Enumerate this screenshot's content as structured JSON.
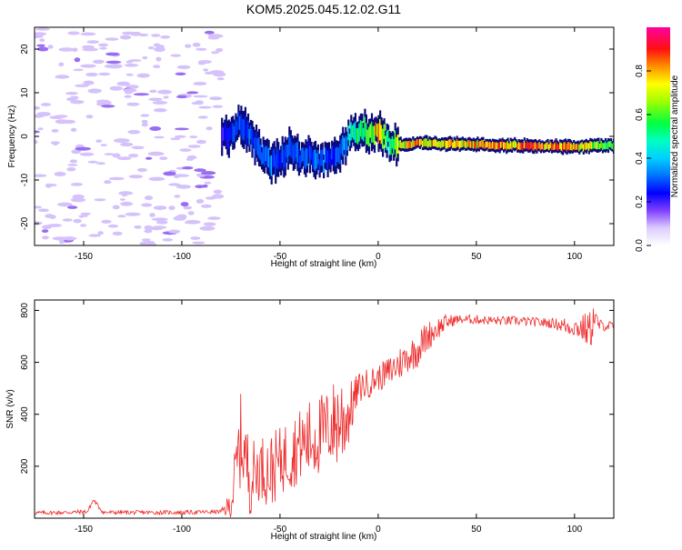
{
  "title": "KOM5.2025.045.12.02.G11",
  "chart_data": [
    {
      "type": "heatmap",
      "xlabel": "Height of straight line (km)",
      "ylabel": "Frequency (Hz)",
      "xlim": [
        -175,
        120
      ],
      "ylim": [
        -25,
        25
      ],
      "x_ticks": [
        -150,
        -100,
        -50,
        0,
        50,
        100
      ],
      "x_tick_labels": [
        "-150",
        "-100",
        "-50",
        "0",
        "50",
        "100"
      ],
      "y_ticks": [
        -20,
        -10,
        0,
        10,
        20
      ],
      "y_tick_labels": [
        "-20",
        "-10",
        "0",
        "10",
        "20"
      ],
      "grid": false,
      "colorbar": {
        "label": "Normalized spectral amplitude",
        "range": [
          0,
          1
        ],
        "ticks": [
          0.0,
          0.2,
          0.4,
          0.6,
          0.8
        ],
        "tick_labels": [
          "0.0",
          "0.2",
          "0.4",
          "0.6",
          "0.8"
        ]
      },
      "ridge": {
        "x": [
          -80,
          -75,
          -70,
          -65,
          -60,
          -55,
          -50,
          -45,
          -40,
          -35,
          -30,
          -25,
          -20,
          -15,
          -10,
          -5,
          0,
          5,
          10,
          20,
          40,
          60,
          80,
          100,
          120
        ],
        "frequency": [
          -1,
          1,
          3,
          0,
          -4,
          -6,
          -5,
          -3,
          -5,
          -4,
          -6,
          -5,
          -3,
          0,
          1,
          1,
          1,
          -1,
          -2,
          -1.5,
          -1.8,
          -2,
          -2.2,
          -2.4,
          -2
        ],
        "amplitude": [
          0.2,
          0.3,
          0.35,
          0.3,
          0.3,
          0.35,
          0.3,
          0.3,
          0.35,
          0.3,
          0.35,
          0.3,
          0.3,
          0.45,
          0.55,
          0.6,
          0.95,
          0.5,
          0.7,
          0.85,
          0.8,
          0.85,
          0.9,
          0.85,
          0.6
        ]
      },
      "noise_region": {
        "x_from": -175,
        "x_to": -80,
        "amplitude": 0.1
      }
    },
    {
      "type": "line",
      "xlabel": "Height of straight line (km)",
      "ylabel": "SNR (v/v)",
      "xlim": [
        -175,
        120
      ],
      "ylim": [
        0,
        840
      ],
      "x_ticks": [
        -150,
        -100,
        -50,
        0,
        50,
        100
      ],
      "x_tick_labels": [
        "-150",
        "-100",
        "-50",
        "0",
        "50",
        "100"
      ],
      "y_ticks": [
        200,
        400,
        600,
        800
      ],
      "y_tick_labels": [
        "200",
        "400",
        "600",
        "800"
      ],
      "grid": false,
      "series": [
        {
          "color": "#ee2b2b",
          "x": [
            -175,
            -160,
            -148,
            -145,
            -140,
            -120,
            -100,
            -80,
            -75,
            -72,
            -70,
            -68,
            -65,
            -60,
            -55,
            -50,
            -45,
            -40,
            -35,
            -30,
            -25,
            -20,
            -18,
            -15,
            -10,
            -5,
            0,
            5,
            10,
            15,
            20,
            25,
            30,
            35,
            40,
            50,
            60,
            70,
            80,
            90,
            95,
            100,
            105,
            108,
            110,
            112,
            115,
            120
          ],
          "y": [
            20,
            22,
            25,
            70,
            22,
            22,
            22,
            25,
            50,
            200,
            300,
            250,
            150,
            200,
            180,
            220,
            250,
            280,
            300,
            320,
            350,
            380,
            380,
            400,
            500,
            520,
            540,
            560,
            590,
            620,
            650,
            700,
            730,
            755,
            765,
            765,
            760,
            760,
            755,
            750,
            740,
            735,
            730,
            720,
            780,
            745,
            740,
            740
          ],
          "amplitude": [
            8,
            8,
            8,
            8,
            8,
            8,
            8,
            8,
            60,
            150,
            180,
            150,
            150,
            120,
            150,
            130,
            150,
            140,
            160,
            160,
            150,
            200,
            200,
            120,
            60,
            60,
            50,
            60,
            70,
            60,
            70,
            60,
            45,
            30,
            18,
            18,
            18,
            18,
            18,
            20,
            35,
            35,
            60,
            80,
            60,
            25,
            20,
            20
          ]
        }
      ]
    }
  ]
}
